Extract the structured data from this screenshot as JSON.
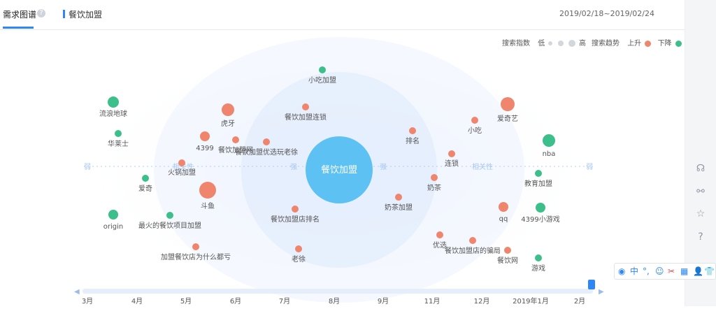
{
  "header": {
    "tab_label": "需求图谱",
    "help_icon": "question-circle-icon",
    "keyword": "餐饮加盟",
    "date_range": "2019/02/18~2019/02/24"
  },
  "legend": {
    "search_index_label": "搜索指数",
    "low": "低",
    "high": "高",
    "trend_label": "搜索趋势",
    "up": "上升",
    "down": "下降",
    "colors": {
      "up": "#f0856d",
      "down": "#3cbf8a",
      "index": "#d3d6db"
    }
  },
  "graph": {
    "center": "餐饮加盟",
    "correlation_labels": [
      "相关性",
      "强",
      "强",
      "相关性",
      "弱",
      "弱"
    ],
    "nodes": [
      {
        "label": "小吃加盟",
        "trend": "down"
      },
      {
        "label": "餐饮加盟连锁",
        "trend": "up"
      },
      {
        "label": "流浪地球",
        "trend": "down"
      },
      {
        "label": "华莱士",
        "trend": "down"
      },
      {
        "label": "虎牙",
        "trend": "up"
      },
      {
        "label": "4399",
        "trend": "up"
      },
      {
        "label": "餐饮加盟网",
        "trend": "up"
      },
      {
        "label": "餐饮加盟优选玩老徐",
        "trend": "up"
      },
      {
        "label": "火锅加盟",
        "trend": "up"
      },
      {
        "label": "爱奇",
        "trend": "down"
      },
      {
        "label": "斗鱼",
        "trend": "up"
      },
      {
        "label": "origin",
        "trend": "down"
      },
      {
        "label": "最火的餐饮项目加盟",
        "trend": "down"
      },
      {
        "label": "餐饮加盟店排名",
        "trend": "up"
      },
      {
        "label": "加盟餐饮店为什么都亏",
        "trend": "up"
      },
      {
        "label": "老徐",
        "trend": "up"
      },
      {
        "label": "排名",
        "trend": "up"
      },
      {
        "label": "小吃",
        "trend": "up"
      },
      {
        "label": "爱奇艺",
        "trend": "up"
      },
      {
        "label": "nba",
        "trend": "down"
      },
      {
        "label": "连锁",
        "trend": "up"
      },
      {
        "label": "奶茶",
        "trend": "up"
      },
      {
        "label": "教育加盟",
        "trend": "down"
      },
      {
        "label": "奶茶加盟",
        "trend": "up"
      },
      {
        "label": "qq",
        "trend": "up"
      },
      {
        "label": "4399小游戏",
        "trend": "down"
      },
      {
        "label": "优选",
        "trend": "up"
      },
      {
        "label": "餐饮加盟店的骗局",
        "trend": "up"
      },
      {
        "label": "餐饮网",
        "trend": "up"
      },
      {
        "label": "游戏",
        "trend": "down"
      }
    ]
  },
  "timeline": {
    "ticks": [
      "3月",
      "4月",
      "5月",
      "6月",
      "7月",
      "8月",
      "9月",
      "11月",
      "12月",
      "2019年1月",
      "2月"
    ]
  },
  "right_rail": {
    "icons": [
      "headset-icon",
      "share-icon",
      "star-icon",
      "help-icon"
    ]
  },
  "ime_toolbar": {
    "icons": [
      "ime-logo-icon",
      "chinese-mode-icon",
      "punctuation-icon",
      "emoji-icon",
      "scissors-icon",
      "keyboard-icon",
      "user-icon",
      "skin-icon"
    ],
    "mode_text": "中"
  }
}
